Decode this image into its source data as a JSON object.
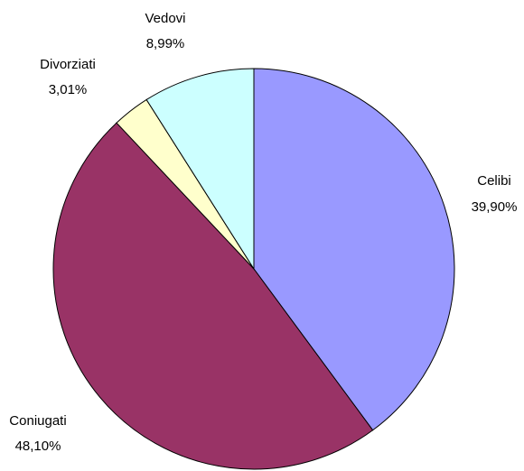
{
  "chart_data": {
    "type": "pie",
    "categories": [
      "Celibi",
      "Coniugati",
      "Divorziati",
      "Vedovi"
    ],
    "values": [
      39.9,
      48.1,
      3.01,
      8.99
    ],
    "value_labels": [
      "39,90%",
      "48,10%",
      "3,01%",
      "8,99%"
    ],
    "colors": [
      "#9999ff",
      "#993366",
      "#ffffcc",
      "#ccffff"
    ]
  }
}
